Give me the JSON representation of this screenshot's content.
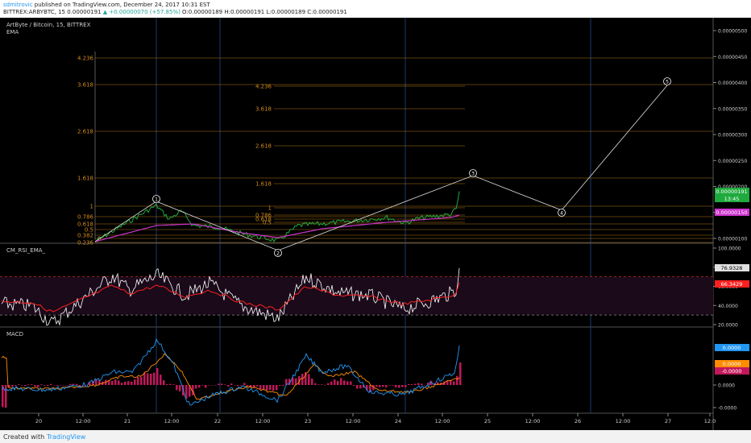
{
  "header": {
    "author": "sdmitrovic",
    "published": " published on TradingView.com, December 24, 2017 10:31 EST",
    "symbol": "BITTREX:ARBYBTC, 15",
    "last_price": "0.00000191",
    "change": "▲ +0.00000070 (+57.85%)",
    "ohlc": "O:0.00000189 H:0.00000191 L:0.00000189 C:0.00000191"
  },
  "chart_data": {
    "main": {
      "type": "line",
      "title": "ArtByte / Bitcoin, 15, BITTREX",
      "indicator": "EMA",
      "x_ticks": [
        "20",
        "12:00",
        "21",
        "12:00",
        "22",
        "12:00",
        "23",
        "12:00",
        "24",
        "12:00",
        "25",
        "12:00",
        "26",
        "12:00",
        "27",
        "12:0"
      ],
      "y_ticks": [
        "0.00000500",
        "0.00000450",
        "0.00000400",
        "0.00000350",
        "0.00000300",
        "0.00000250",
        "0.00000200",
        "0.00000150",
        "0.00000100"
      ],
      "ylim": [
        1e-06,
        5e-06
      ],
      "price_label": "0.00000191",
      "countdown_label": "13:45",
      "ema_label": "0.00000150",
      "fib_levels_left": [
        "4.236",
        "3.618",
        "2.618",
        "1.618",
        "1",
        "0.786",
        "0.618",
        "0.5",
        "0.382",
        "0.236",
        "0"
      ],
      "fib_levels_right": [
        "4.236",
        "3.618",
        "2.618",
        "1.618",
        "1",
        "0.786",
        "0.618",
        "0.5"
      ],
      "wave_labels": [
        "1",
        "2",
        "3",
        "4",
        "5"
      ]
    },
    "rsi": {
      "title": "CM_RSI_EMA_",
      "y_ticks": [
        "100.0000",
        "80.0000",
        "60.0000",
        "40.0000",
        "20.0000"
      ],
      "ylim": [
        20,
        100
      ],
      "value_label": "76.9328",
      "ema_label": "66.3429"
    },
    "macd": {
      "title": "MACD",
      "y_ticks": [
        "0.0000",
        "-0.0000"
      ],
      "macd_label": "0.0000",
      "signal_label": "0.0000",
      "hist_label": "-0.0000"
    },
    "colors": {
      "price": "#1faa3e",
      "ema": "#cc33cc",
      "rsi": "#ffffff",
      "rsi_ema": "#ff2020",
      "macd": "#2196f3",
      "signal": "#ff8c00",
      "histogram": "#c2185b",
      "fib": "#d08a1a"
    }
  },
  "footer": {
    "created": "Created with",
    "brand": "TradingView"
  }
}
